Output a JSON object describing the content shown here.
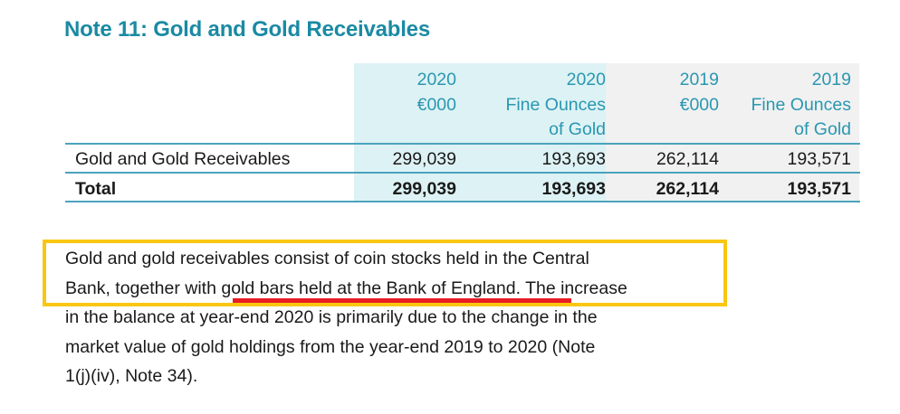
{
  "note": {
    "title": "Note 11: Gold and Gold Receivables"
  },
  "table": {
    "columns": [
      {
        "line1": "2020",
        "line2": "€000",
        "line3": ""
      },
      {
        "line1": "2020",
        "line2": "Fine Ounces",
        "line3": "of Gold"
      },
      {
        "line1": "2019",
        "line2": "€000",
        "line3": ""
      },
      {
        "line1": "2019",
        "line2": "Fine Ounces",
        "line3": "of Gold"
      }
    ],
    "rows": [
      {
        "label": "Gold and Gold Receivables",
        "values": [
          "299,039",
          "193,693",
          "262,114",
          "193,571"
        ],
        "bold": false
      },
      {
        "label": "Total",
        "values": [
          "299,039",
          "193,693",
          "262,114",
          "193,571"
        ],
        "bold": true
      }
    ]
  },
  "paragraph": {
    "lines": [
      "Gold and gold receivables consist of coin stocks held in the Central",
      "Bank, together with gold bars held at the Bank of England. The increase",
      "in the balance at year-end 2020 is primarily due to the change in the",
      "market value of gold holdings from the year-end 2019 to 2020 (Note",
      "1(j)(iv), Note 34)."
    ],
    "underlined_phrase": "gold bars held at the Bank of England."
  },
  "annotations": {
    "highlight_box_color": "#f9c612",
    "underline_color": "#e81c24"
  },
  "colors": {
    "title": "#1a8aa3",
    "header_text": "#2a97b1",
    "col_2020_bg": "#ddf2f4",
    "col_2019_bg": "#f1f1f1",
    "rule": "#4aa3bd"
  }
}
